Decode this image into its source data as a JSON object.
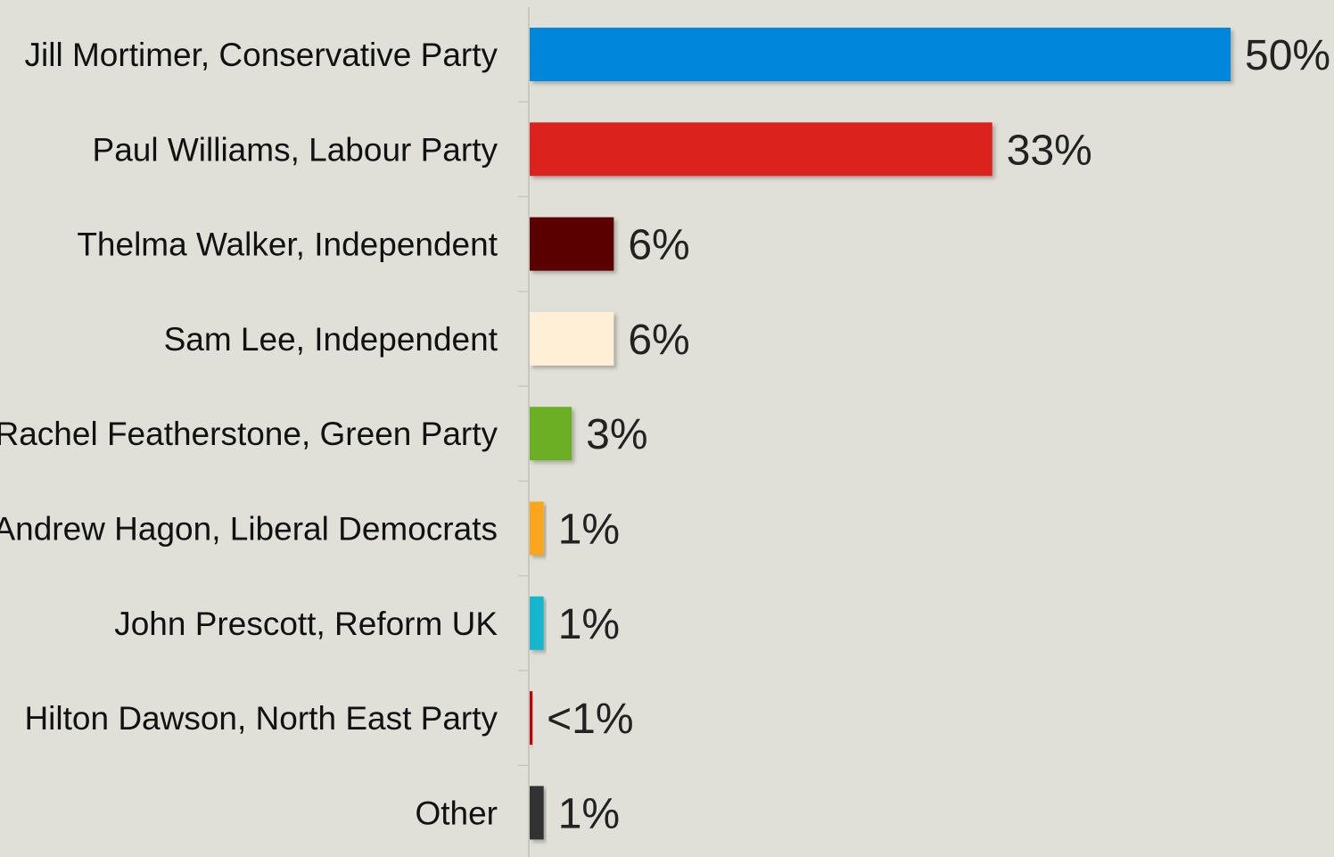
{
  "chart_data": {
    "type": "bar",
    "orientation": "horizontal",
    "categories": [
      "Jill Mortimer, Conservative Party",
      "Paul Williams, Labour Party",
      "Thelma Walker, Independent",
      "Sam Lee, Independent",
      "Rachel Featherstone, Green Party",
      "Andrew Hagon, Liberal Democrats",
      "John Prescott, Reform UK",
      "Hilton Dawson, North East Party",
      "Other"
    ],
    "values": [
      50,
      33,
      6,
      6,
      3,
      1,
      1,
      0.2,
      1
    ],
    "value_labels": [
      "50%",
      "33%",
      "6%",
      "6%",
      "3%",
      "1%",
      "1%",
      "<1%",
      "1%"
    ],
    "colors": [
      "#0087dc",
      "#dc241f",
      "#5a0000",
      "#ffefd6",
      "#6ab023",
      "#faa61a",
      "#12b6cf",
      "#c00000",
      "#333333"
    ],
    "xlim": [
      0,
      50
    ],
    "grid": false,
    "legend": "none"
  }
}
